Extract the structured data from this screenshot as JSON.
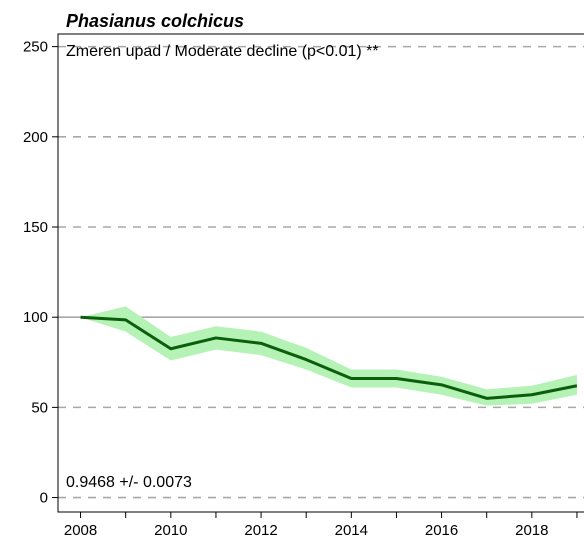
{
  "chart_data": {
    "type": "line",
    "title": "Phasianus colchicus",
    "subtitle": "Zmeren upad / Moderate decline (p<0.01) **",
    "annotation": "0.9468 +/- 0.0073",
    "xlabel": "",
    "ylabel": "",
    "x": [
      2008,
      2009,
      2010,
      2011,
      2012,
      2013,
      2014,
      2015,
      2016,
      2017,
      2018,
      2019
    ],
    "series": [
      {
        "values": [
          100,
          98.5,
          82.5,
          88.5,
          85.5,
          76.5,
          66,
          66,
          62.5,
          55,
          57,
          62
        ],
        "lower": [
          100,
          92,
          76,
          82,
          79,
          71,
          61,
          61,
          57,
          51,
          52,
          57
        ],
        "upper": [
          100,
          106,
          89,
          95,
          92,
          83,
          71,
          71,
          67,
          60,
          62,
          68
        ],
        "color": "#0b5e0b",
        "band_color": "#b5f2b5"
      }
    ],
    "xlim": [
      2007.5,
      2019.4
    ],
    "ylim": [
      -8,
      257
    ],
    "xticks": [
      2008,
      2009,
      2010,
      2011,
      2012,
      2013,
      2014,
      2015,
      2016,
      2017,
      2018,
      2019
    ],
    "xtick_labels": [
      "2008",
      "",
      "2010",
      "",
      "2012",
      "",
      "2014",
      "",
      "2016",
      "",
      "2018",
      ""
    ],
    "yticks": [
      0,
      50,
      100,
      150,
      200,
      250
    ],
    "ytick_labels": [
      "0",
      "50",
      "100",
      "150",
      "200",
      "250"
    ],
    "grid": "dashed horizontal at 0, 50, 150, 200; solid reference at 100",
    "colors": {
      "line": "#0b5e0b",
      "band": "#b5f2b5",
      "grid": "#a8a8a8",
      "reference": "#a8a8a8"
    }
  }
}
